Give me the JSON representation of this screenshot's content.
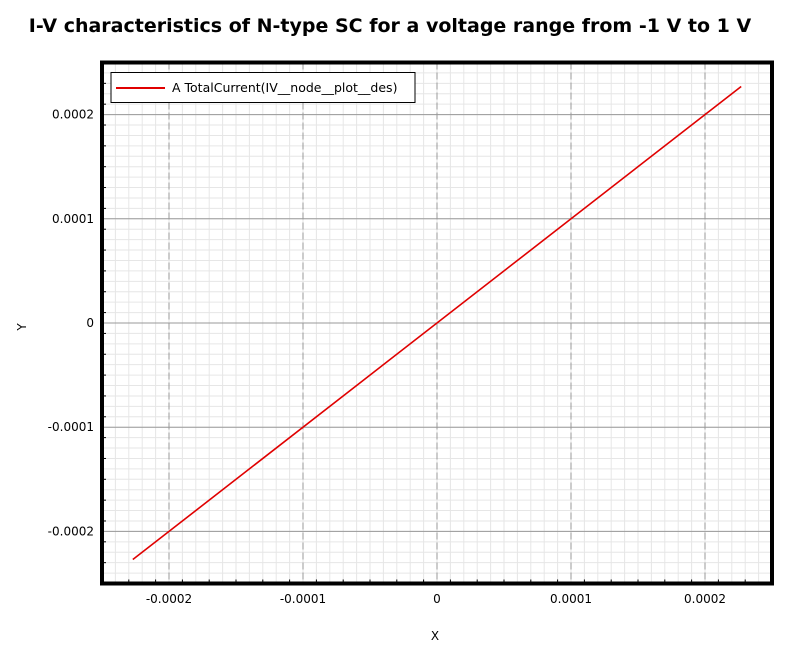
{
  "chart_data": {
    "type": "line",
    "title": "I-V characteristics of N-type SC for a voltage range from -1 V to 1 V",
    "xlabel": "X",
    "ylabel": "Y",
    "xlim": [
      -0.00025,
      0.00025
    ],
    "ylim": [
      -0.00025,
      0.00025
    ],
    "x_ticks": [
      -0.0002,
      -0.0001,
      0,
      0.0001,
      0.0002
    ],
    "x_tick_labels": [
      "-0.0002",
      "-0.0001",
      "0",
      "0.0001",
      "0.0002"
    ],
    "y_ticks": [
      -0.0002,
      -0.0001,
      0,
      0.0001,
      0.0002
    ],
    "y_tick_labels": [
      "-0.0002",
      "-0.0001",
      "0",
      "0.0001",
      "0.0002"
    ],
    "grid": true,
    "legend_position": "top-left",
    "series": [
      {
        "name": "A TotalCurrent(IV__node__plot__des)",
        "color": "#e00000",
        "x": [
          -0.000227,
          0.000227
        ],
        "y": [
          -0.000227,
          0.000227
        ]
      }
    ]
  },
  "colors": {
    "major_grid": "#999999",
    "minor_grid": "#e6e6e6",
    "frame": "#000000"
  }
}
